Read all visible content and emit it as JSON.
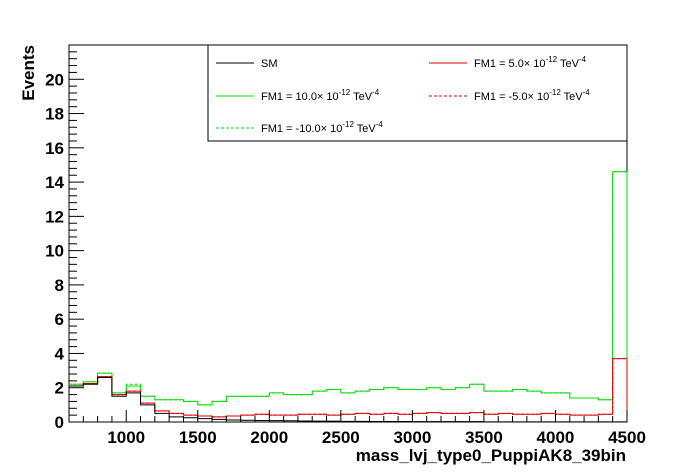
{
  "chart_data": {
    "type": "line",
    "title": "",
    "xlabel": "mass_lvj_type0_PuppiAK8_39bin",
    "ylabel": "Events",
    "xlim": [
      600,
      4500
    ],
    "ylim": [
      0,
      22
    ],
    "x_ticks": [
      1000,
      1500,
      2000,
      2500,
      3000,
      3500,
      4000,
      4500
    ],
    "y_ticks": [
      0,
      2,
      4,
      6,
      8,
      10,
      12,
      14,
      16,
      18,
      20
    ],
    "grid": false,
    "legend_position": "top-right",
    "bin_edges": [
      600,
      700,
      800,
      900,
      1000,
      1100,
      1200,
      1300,
      1400,
      1500,
      1600,
      1700,
      1800,
      1900,
      2000,
      2100,
      2200,
      2300,
      2400,
      2500,
      2600,
      2700,
      2800,
      2900,
      3000,
      3100,
      3200,
      3300,
      3400,
      3500,
      3600,
      3700,
      3800,
      3900,
      4000,
      4100,
      4200,
      4300,
      4400,
      4500
    ],
    "series": [
      {
        "name": "SM",
        "legend": {
          "pre": "SM",
          "exp": "",
          "post": ""
        },
        "color": "#000000",
        "dash": "solid",
        "values": [
          2.1,
          2.2,
          2.6,
          1.5,
          1.7,
          1.0,
          0.5,
          0.3,
          0.25,
          0.2,
          0.15,
          0.12,
          0.1,
          0.09,
          0.08,
          0.07,
          0.06,
          0.05,
          0.05,
          0.04,
          0.04,
          0.03,
          0.03,
          0.03,
          0.02,
          0.02,
          0.02,
          0.02,
          0.02,
          0.01,
          0.01,
          0.01,
          0.01,
          0.01,
          0.01,
          0.01,
          0.01,
          0.01,
          0.01
        ]
      },
      {
        "name": "FM1 = 5.0× 10-12 TeV-4",
        "legend": {
          "pre": "FM1 = 5.0× 10",
          "exp": "-12",
          "post": " TeV",
          "exp2": "-4"
        },
        "color": "#dd0000",
        "dash": "solid",
        "values": [
          2.1,
          2.25,
          2.65,
          1.6,
          1.8,
          1.1,
          0.65,
          0.5,
          0.4,
          0.35,
          0.3,
          0.35,
          0.4,
          0.45,
          0.4,
          0.4,
          0.45,
          0.45,
          0.4,
          0.45,
          0.5,
          0.45,
          0.5,
          0.45,
          0.5,
          0.55,
          0.5,
          0.5,
          0.55,
          0.45,
          0.5,
          0.45,
          0.45,
          0.5,
          0.45,
          0.4,
          0.4,
          0.45,
          3.7
        ]
      },
      {
        "name": "FM1 = 10.0× 10-12 TeV-4",
        "legend": {
          "pre": "FM1 = 10.0× 10",
          "exp": "-12",
          "post": " TeV",
          "exp2": "-4"
        },
        "color": "#00dd00",
        "dash": "solid",
        "values": [
          2.2,
          2.35,
          2.85,
          1.7,
          2.1,
          1.5,
          1.3,
          1.3,
          1.2,
          1.0,
          1.2,
          1.5,
          1.5,
          1.5,
          1.7,
          1.6,
          1.6,
          1.8,
          1.9,
          1.7,
          1.8,
          1.9,
          2.0,
          1.9,
          1.9,
          2.0,
          1.9,
          2.0,
          2.2,
          1.8,
          1.8,
          1.9,
          1.8,
          1.7,
          1.7,
          1.4,
          1.4,
          1.3,
          14.6
        ]
      },
      {
        "name": "FM1 = -5.0× 10-12 TeV-4",
        "legend": {
          "pre": "FM1 = -5.0× 10",
          "exp": "-12",
          "post": " TeV",
          "exp2": "-4"
        },
        "color": "#dd0000",
        "dash": "dashed",
        "values": [
          2.1,
          2.25,
          2.65,
          1.6,
          1.8,
          1.1,
          0.65,
          0.5,
          0.4,
          0.35,
          0.3,
          0.35,
          0.4,
          0.45,
          0.4,
          0.4,
          0.45,
          0.45,
          0.4,
          0.45,
          0.5,
          0.45,
          0.5,
          0.45,
          0.5,
          0.55,
          0.5,
          0.5,
          0.55,
          0.45,
          0.5,
          0.45,
          0.45,
          0.5,
          0.45,
          0.4,
          0.4,
          0.45,
          3.7
        ]
      },
      {
        "name": "FM1 = -10.0× 10-12 TeV-4",
        "legend": {
          "pre": "FM1 = -10.0× 10",
          "exp": "-12",
          "post": " TeV",
          "exp2": "-4"
        },
        "color": "#00dd00",
        "dash": "dashed",
        "values": [
          2.2,
          2.35,
          2.85,
          1.7,
          2.2,
          1.5,
          1.3,
          1.3,
          1.2,
          1.0,
          1.2,
          1.5,
          1.5,
          1.5,
          1.7,
          1.6,
          1.6,
          1.8,
          1.9,
          1.7,
          1.8,
          1.9,
          2.0,
          1.9,
          1.9,
          2.0,
          1.9,
          2.0,
          2.2,
          1.8,
          1.8,
          1.9,
          1.8,
          1.7,
          1.7,
          1.4,
          1.4,
          1.3,
          14.6
        ]
      }
    ]
  }
}
